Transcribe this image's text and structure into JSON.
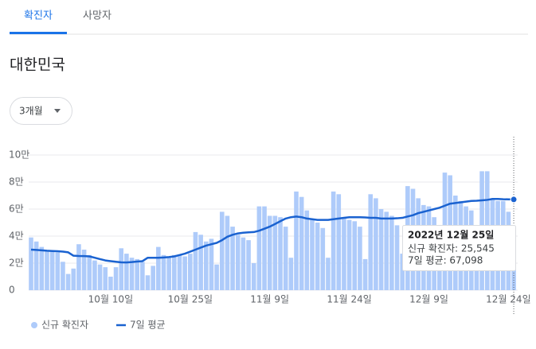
{
  "tabs": [
    "확진자",
    "사망자"
  ],
  "region": "대한민국",
  "range_button": "3개월",
  "chart_data": {
    "type": "bar",
    "categories": [
      null,
      null,
      null,
      null,
      null,
      null,
      null,
      null,
      null,
      null,
      null,
      null,
      null,
      null,
      null,
      "10월 10일",
      null,
      null,
      null,
      null,
      null,
      null,
      null,
      null,
      null,
      null,
      null,
      null,
      null,
      null,
      "10월 25일",
      null,
      null,
      null,
      null,
      null,
      null,
      null,
      null,
      null,
      null,
      null,
      null,
      null,
      null,
      "11월 9일",
      null,
      null,
      null,
      null,
      null,
      null,
      null,
      null,
      null,
      null,
      null,
      null,
      null,
      null,
      "11월 24일",
      null,
      null,
      null,
      null,
      null,
      null,
      null,
      null,
      null,
      null,
      null,
      null,
      null,
      null,
      "12월 9일",
      null,
      null,
      null,
      null,
      null,
      null,
      null,
      null,
      null,
      null,
      null,
      null,
      null,
      null,
      "12월 24일",
      null
    ],
    "series": [
      {
        "name": "신규 확진자",
        "type": "bar",
        "color": "#aecbfa",
        "values": [
          39000,
          36000,
          32000,
          29000,
          29000,
          28000,
          21000,
          12000,
          16000,
          34000,
          30000,
          26000,
          22000,
          19000,
          17000,
          10000,
          17000,
          31000,
          27000,
          24000,
          23000,
          21000,
          11000,
          18000,
          32000,
          26000,
          25000,
          26000,
          26000,
          25000,
          27000,
          43000,
          41000,
          36000,
          38000,
          19000,
          58000,
          55000,
          47000,
          41000,
          39000,
          37000,
          20000,
          62000,
          62000,
          55000,
          55000,
          54000,
          47000,
          24000,
          73000,
          69000,
          59000,
          52000,
          50000,
          46000,
          24000,
          73000,
          71000,
          54000,
          52000,
          51000,
          47000,
          23000,
          71000,
          68000,
          60000,
          58000,
          55000,
          48000,
          27000,
          77000,
          75000,
          68000,
          63000,
          62000,
          54000,
          26000,
          87000,
          85000,
          70000,
          66000,
          62000,
          59000,
          29000,
          88000,
          88000,
          68000,
          66000,
          66000,
          58000,
          25545
        ]
      },
      {
        "name": "7일 평균",
        "type": "line",
        "color": "#1a62d0",
        "values": [
          30000,
          29800,
          29500,
          29200,
          29000,
          28800,
          28500,
          28000,
          25500,
          25300,
          25200,
          25000,
          24000,
          23000,
          22000,
          21500,
          21000,
          20600,
          20500,
          20800,
          21200,
          21500,
          24000,
          24000,
          24000,
          24200,
          24500,
          25000,
          26000,
          27000,
          28500,
          30000,
          31500,
          33000,
          34000,
          35000,
          37000,
          39500,
          41000,
          42000,
          42500,
          42800,
          43000,
          44000,
          45500,
          47000,
          49000,
          51000,
          53000,
          54000,
          54500,
          54000,
          53000,
          52500,
          52000,
          52000,
          52000,
          52500,
          53000,
          53500,
          54000,
          54000,
          54000,
          53800,
          53500,
          53500,
          53000,
          53000,
          53000,
          53200,
          53500,
          54500,
          55500,
          57000,
          58000,
          59000,
          60000,
          61000,
          62500,
          64000,
          64500,
          65000,
          65500,
          66000,
          66200,
          66500,
          66800,
          67500,
          67500,
          67300,
          67200,
          67098
        ]
      }
    ],
    "ylim": [
      0,
      100000
    ],
    "yticks": [
      0,
      {
        "value": 20000,
        "label": "2만"
      },
      {
        "value": 40000,
        "label": "4만"
      },
      {
        "value": 60000,
        "label": "6만"
      },
      {
        "value": 80000,
        "label": "8만"
      },
      {
        "value": 100000,
        "label": "10만"
      }
    ],
    "grid": true,
    "legend": "bottom-left",
    "tooltip": {
      "title": "2022년 12월 25일",
      "lines": [
        "신규 확진자: 25,545",
        "7일 평균: 67,098"
      ]
    }
  }
}
